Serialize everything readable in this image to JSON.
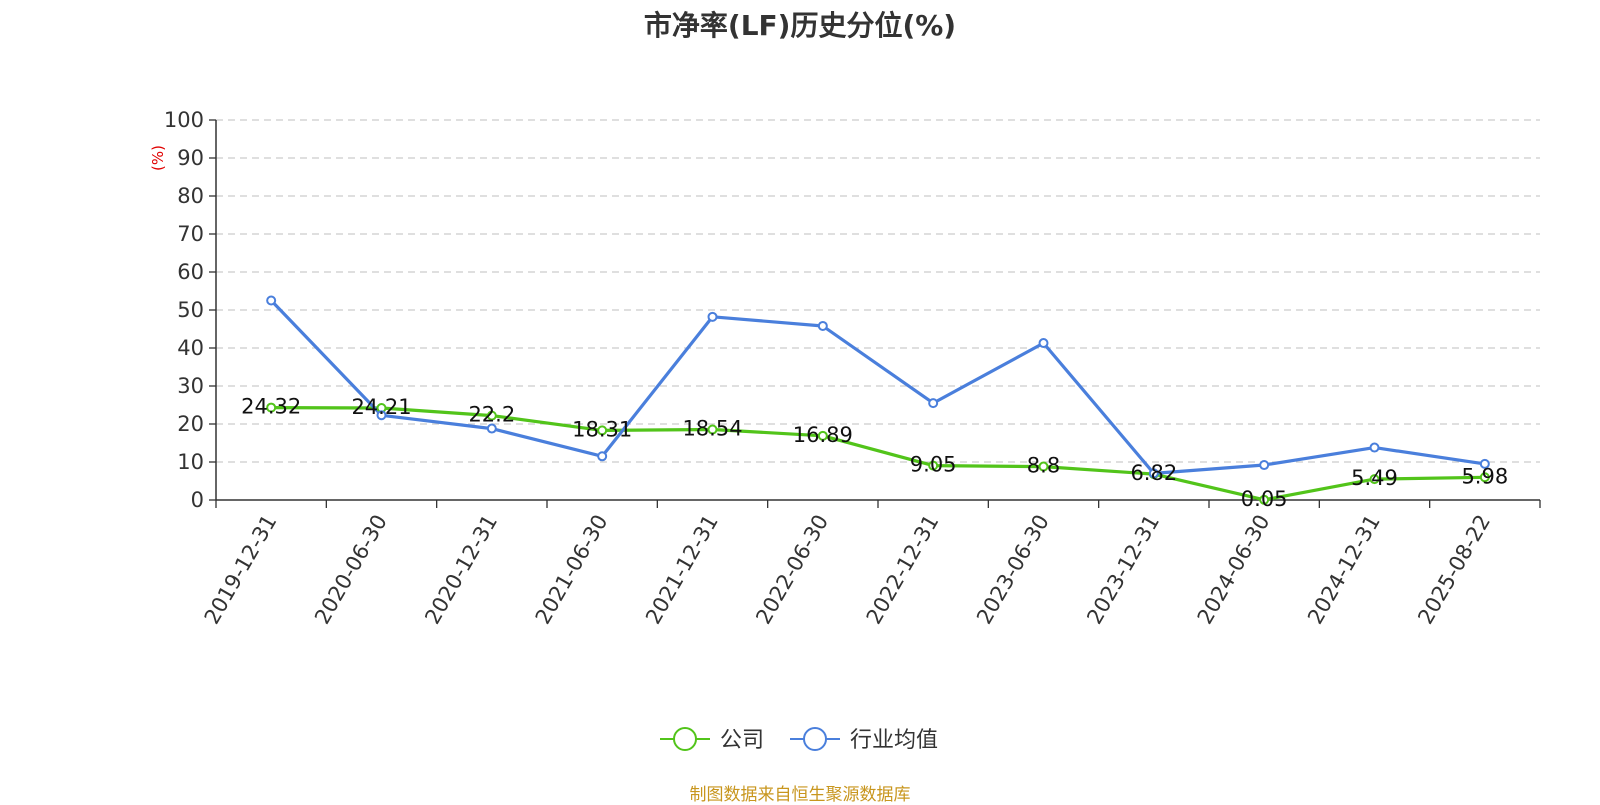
{
  "chart_data": {
    "type": "line",
    "title": "市净率(LF)历史分位(%)",
    "ylabel": "(%)",
    "ylim": [
      0,
      100
    ],
    "yticks": [
      0,
      10,
      20,
      30,
      40,
      50,
      60,
      70,
      80,
      90,
      100
    ],
    "grid": true,
    "legend_position": "bottom-center",
    "categories": [
      "2019-12-31",
      "2020-06-30",
      "2020-12-31",
      "2021-06-30",
      "2021-12-31",
      "2022-06-30",
      "2022-12-31",
      "2023-06-30",
      "2023-12-31",
      "2024-06-30",
      "2024-12-31",
      "2025-08-22"
    ],
    "series": [
      {
        "name": "公司",
        "color": "#52c41a",
        "values": [
          24.32,
          24.21,
          22.2,
          18.31,
          18.54,
          16.89,
          9.05,
          8.8,
          6.82,
          0.05,
          5.49,
          5.98
        ],
        "labels": [
          "24.32",
          "24.21",
          "22.2",
          "18.31",
          "18.54",
          "16.89",
          "9.05",
          "8.8",
          "6.82",
          "0.05",
          "5.49",
          "5.98"
        ]
      },
      {
        "name": "行业均值",
        "color": "#4a7fdc",
        "values": [
          52.5,
          22.3,
          18.8,
          11.5,
          48.2,
          45.8,
          25.5,
          41.3,
          7.0,
          9.2,
          13.8,
          9.5
        ]
      }
    ],
    "source": "制图数据来自恒生聚源数据库"
  }
}
